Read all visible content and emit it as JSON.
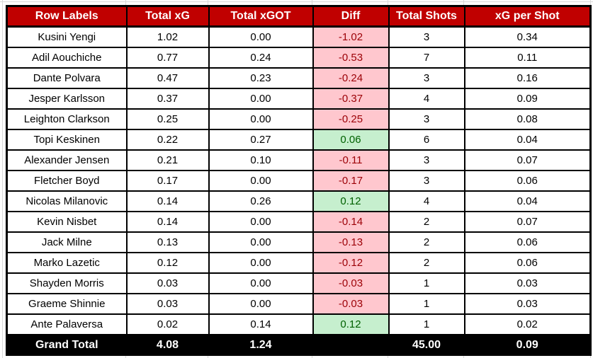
{
  "chart_data": {
    "type": "table",
    "columns": [
      "Row Labels",
      "Total xG",
      "Total xGOT",
      "Diff",
      "Total Shots",
      "xG per Shot"
    ],
    "rows": [
      {
        "player": "Kusini Yengi",
        "total_xg": "1.02",
        "total_xgot": "0.00",
        "diff": "-1.02",
        "total_shots": "3",
        "xg_per_shot": "0.34"
      },
      {
        "player": "Adil Aouchiche",
        "total_xg": "0.77",
        "total_xgot": "0.24",
        "diff": "-0.53",
        "total_shots": "7",
        "xg_per_shot": "0.11"
      },
      {
        "player": "Dante Polvara",
        "total_xg": "0.47",
        "total_xgot": "0.23",
        "diff": "-0.24",
        "total_shots": "3",
        "xg_per_shot": "0.16"
      },
      {
        "player": "Jesper Karlsson",
        "total_xg": "0.37",
        "total_xgot": "0.00",
        "diff": "-0.37",
        "total_shots": "4",
        "xg_per_shot": "0.09"
      },
      {
        "player": "Leighton Clarkson",
        "total_xg": "0.25",
        "total_xgot": "0.00",
        "diff": "-0.25",
        "total_shots": "3",
        "xg_per_shot": "0.08"
      },
      {
        "player": "Topi Keskinen",
        "total_xg": "0.22",
        "total_xgot": "0.27",
        "diff": "0.06",
        "total_shots": "6",
        "xg_per_shot": "0.04"
      },
      {
        "player": "Alexander Jensen",
        "total_xg": "0.21",
        "total_xgot": "0.10",
        "diff": "-0.11",
        "total_shots": "3",
        "xg_per_shot": "0.07"
      },
      {
        "player": "Fletcher Boyd",
        "total_xg": "0.17",
        "total_xgot": "0.00",
        "diff": "-0.17",
        "total_shots": "3",
        "xg_per_shot": "0.06"
      },
      {
        "player": "Nicolas Milanovic",
        "total_xg": "0.14",
        "total_xgot": "0.26",
        "diff": "0.12",
        "total_shots": "4",
        "xg_per_shot": "0.04"
      },
      {
        "player": "Kevin Nisbet",
        "total_xg": "0.14",
        "total_xgot": "0.00",
        "diff": "-0.14",
        "total_shots": "2",
        "xg_per_shot": "0.07"
      },
      {
        "player": "Jack Milne",
        "total_xg": "0.13",
        "total_xgot": "0.00",
        "diff": "-0.13",
        "total_shots": "2",
        "xg_per_shot": "0.06"
      },
      {
        "player": "Marko Lazetic",
        "total_xg": "0.12",
        "total_xgot": "0.00",
        "diff": "-0.12",
        "total_shots": "2",
        "xg_per_shot": "0.06"
      },
      {
        "player": "Shayden Morris",
        "total_xg": "0.03",
        "total_xgot": "0.00",
        "diff": "-0.03",
        "total_shots": "1",
        "xg_per_shot": "0.03"
      },
      {
        "player": "Graeme Shinnie",
        "total_xg": "0.03",
        "total_xgot": "0.00",
        "diff": "-0.03",
        "total_shots": "1",
        "xg_per_shot": "0.03"
      },
      {
        "player": "Ante Palaversa",
        "total_xg": "0.02",
        "total_xgot": "0.14",
        "diff": "0.12",
        "total_shots": "1",
        "xg_per_shot": "0.02"
      }
    ],
    "grand_total": {
      "label": "Grand Total",
      "total_xg": "4.08",
      "total_xgot": "1.24",
      "diff": "",
      "total_shots": "45.00",
      "xg_per_shot": "0.09"
    }
  },
  "colors": {
    "header_bg": "#C00000",
    "header_text": "#FFFFFF",
    "negative_bg": "#FFC7CE",
    "negative_text": "#9C0006",
    "positive_bg": "#C6EFCE",
    "positive_text": "#006100",
    "grand_total_bg": "#000000",
    "grand_total_text": "#FFFFFF",
    "border": "#000000",
    "gridline": "#D9D9D9"
  }
}
